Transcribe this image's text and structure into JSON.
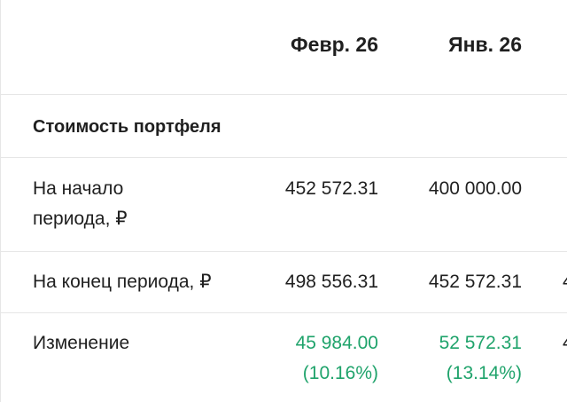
{
  "header": {
    "col1": "Февр. 26",
    "col2": "Янв. 26"
  },
  "section_title": "Стоимость портфеля",
  "rows": [
    {
      "label_line1": "На начало",
      "label_line2": "периода, ₽",
      "v1": "452 572.31",
      "v2": "400 000.00"
    },
    {
      "label": "На конец периода, ₽",
      "v1": "498 556.31",
      "v2": "452 572.31",
      "v3_clip": "4"
    },
    {
      "label": "Изменение",
      "v1": "45 984.00",
      "v1_pct": "(10.16%)",
      "v2": "52 572.31",
      "v2_pct": "(13.14%)",
      "v3_clip": "4"
    }
  ],
  "colors": {
    "positive": "#1fa36b",
    "divider": "#e6e6e6",
    "text": "#1f1f1f"
  }
}
